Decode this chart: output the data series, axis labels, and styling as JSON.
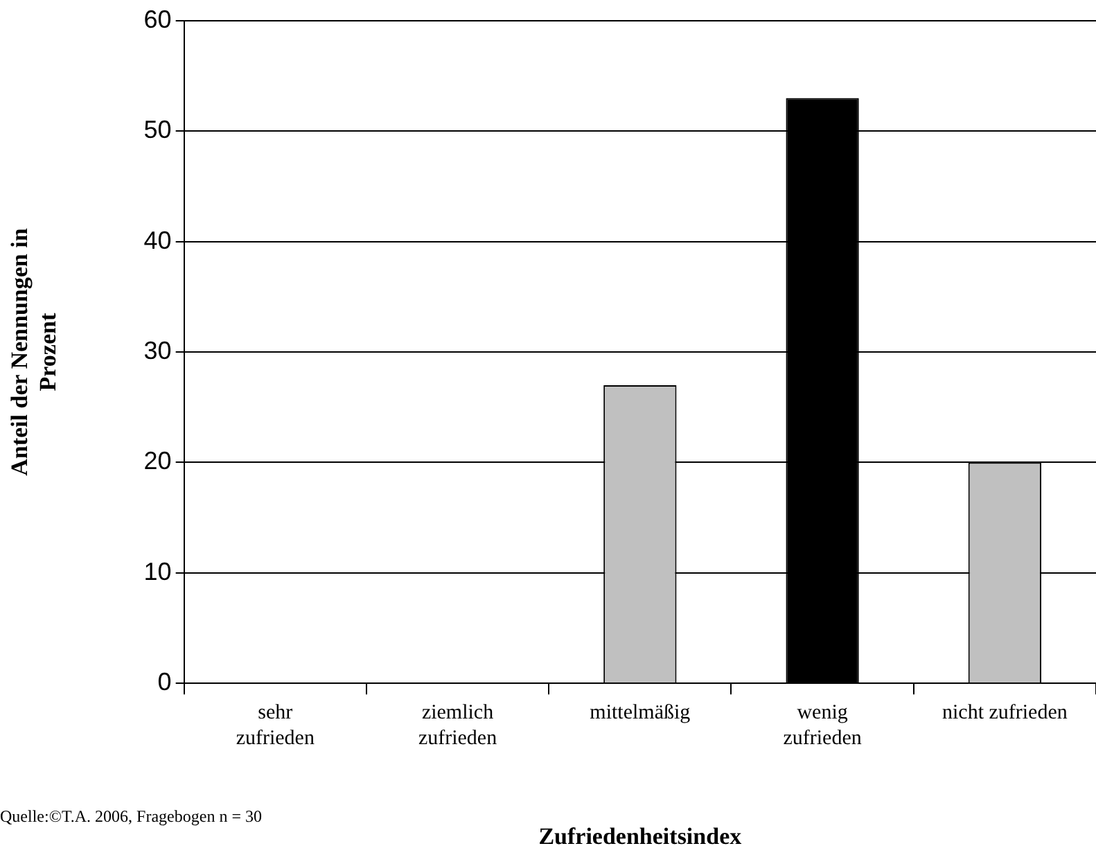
{
  "chart_data": {
    "type": "bar",
    "xlabel": "Zufriedenheitsindex",
    "ylabel": "Anteil der Nennungen in\nProzent",
    "categories": [
      "sehr\nzufrieden",
      "ziemlich\nzufrieden",
      "mittelmäßig",
      "wenig\nzufrieden",
      "nicht zufrieden"
    ],
    "values": [
      0,
      0,
      27,
      53,
      20
    ],
    "colors": [
      "#c0c0c0",
      "#c0c0c0",
      "#c0c0c0",
      "#000000",
      "#c0c0c0"
    ],
    "ylim": [
      0,
      60
    ],
    "yticks": [
      0,
      10,
      20,
      30,
      40,
      50,
      60
    ],
    "grid": "y",
    "legend": false,
    "annotations": [
      "Quelle:©T.A. 2006, Fragebogen n = 30"
    ]
  }
}
